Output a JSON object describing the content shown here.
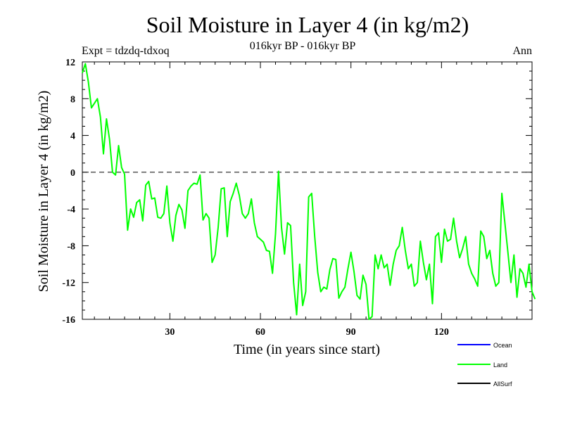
{
  "chart_data": {
    "type": "line",
    "title": "Soil Moisture in Layer 4 (in kg/m2)",
    "subtitle": "016kyr BP - 016kyr BP",
    "experiment_label": "Expt = tdzdq-tdxoq",
    "period_label": "Ann",
    "xlabel": "Time (in years since start)",
    "ylabel": "Soil Moisture in Layer 4 (in kg/m2)",
    "xlim": [
      1,
      150
    ],
    "ylim": [
      -16,
      12
    ],
    "x_ticks": [
      30,
      60,
      90,
      120
    ],
    "x_tick_labels": [
      "30",
      "60",
      "90",
      "120"
    ],
    "y_ticks": [
      12,
      8,
      4,
      0,
      -4,
      -8,
      -12,
      -16
    ],
    "y_tick_labels": [
      "12",
      "8",
      "4",
      "0",
      "-4",
      "-8",
      "-12",
      "-16"
    ],
    "zero_line": {
      "value": 0,
      "style": "dashed",
      "color": "#000000"
    },
    "legend_position": "bottom-right",
    "series": [
      {
        "name": "Land",
        "color": "#00ff00",
        "values": [
          10.8,
          11.8,
          9.8,
          7.0,
          7.5,
          8.0,
          6.0,
          2.0,
          5.8,
          3.6,
          0.0,
          -0.3,
          2.9,
          0.5,
          -0.2,
          -6.3,
          -4.0,
          -4.9,
          -3.3,
          -3.0,
          -5.3,
          -1.4,
          -1.0,
          -2.9,
          -2.8,
          -4.9,
          -5.0,
          -4.5,
          -1.5,
          -5.5,
          -7.5,
          -4.7,
          -3.5,
          -4.1,
          -6.1,
          -2.0,
          -1.5,
          -1.2,
          -1.3,
          -0.3,
          -5.2,
          -4.5,
          -5.0,
          -9.8,
          -9.0,
          -6.0,
          -1.8,
          -1.7,
          -7.0,
          -3.2,
          -2.3,
          -1.2,
          -2.5,
          -4.5,
          -5.0,
          -4.5,
          -2.9,
          -5.5,
          -7.0,
          -7.3,
          -7.6,
          -8.5,
          -8.6,
          -11.0,
          -6.7,
          0.1,
          -6.0,
          -8.9,
          -5.5,
          -5.8,
          -12.0,
          -15.5,
          -10.0,
          -14.5,
          -13.0,
          -2.7,
          -2.3,
          -7.0,
          -10.9,
          -13.0,
          -12.5,
          -12.7,
          -10.6,
          -9.4,
          -9.5,
          -13.7,
          -13.0,
          -12.5,
          -10.5,
          -8.7,
          -10.8,
          -13.4,
          -13.8,
          -11.2,
          -12.2,
          -16.0,
          -15.7,
          -9.0,
          -10.5,
          -9.0,
          -10.4,
          -10.0,
          -12.3,
          -10.0,
          -8.5,
          -8.0,
          -6.0,
          -8.5,
          -10.5,
          -10.0,
          -12.4,
          -12.0,
          -7.5,
          -9.8,
          -11.7,
          -10.0,
          -14.3,
          -7.0,
          -6.6,
          -9.8,
          -6.2,
          -7.5,
          -7.3,
          -5.0,
          -7.5,
          -9.3,
          -8.3,
          -7.0,
          -10.0,
          -11.0,
          -11.6,
          -12.4,
          -6.4,
          -7.0,
          -9.4,
          -8.5,
          -11.0,
          -12.4,
          -12.0,
          -2.3,
          -5.5,
          -8.7,
          -12.0,
          -9.0,
          -13.6,
          -10.5,
          -11.0,
          -12.5,
          -10.0,
          -13.0,
          -13.8
        ]
      }
    ],
    "legend": [
      {
        "name": "Ocean",
        "color": "#0000ff"
      },
      {
        "name": "Land",
        "color": "#00ff00"
      },
      {
        "name": "AllSurf",
        "color": "#000000"
      }
    ]
  }
}
